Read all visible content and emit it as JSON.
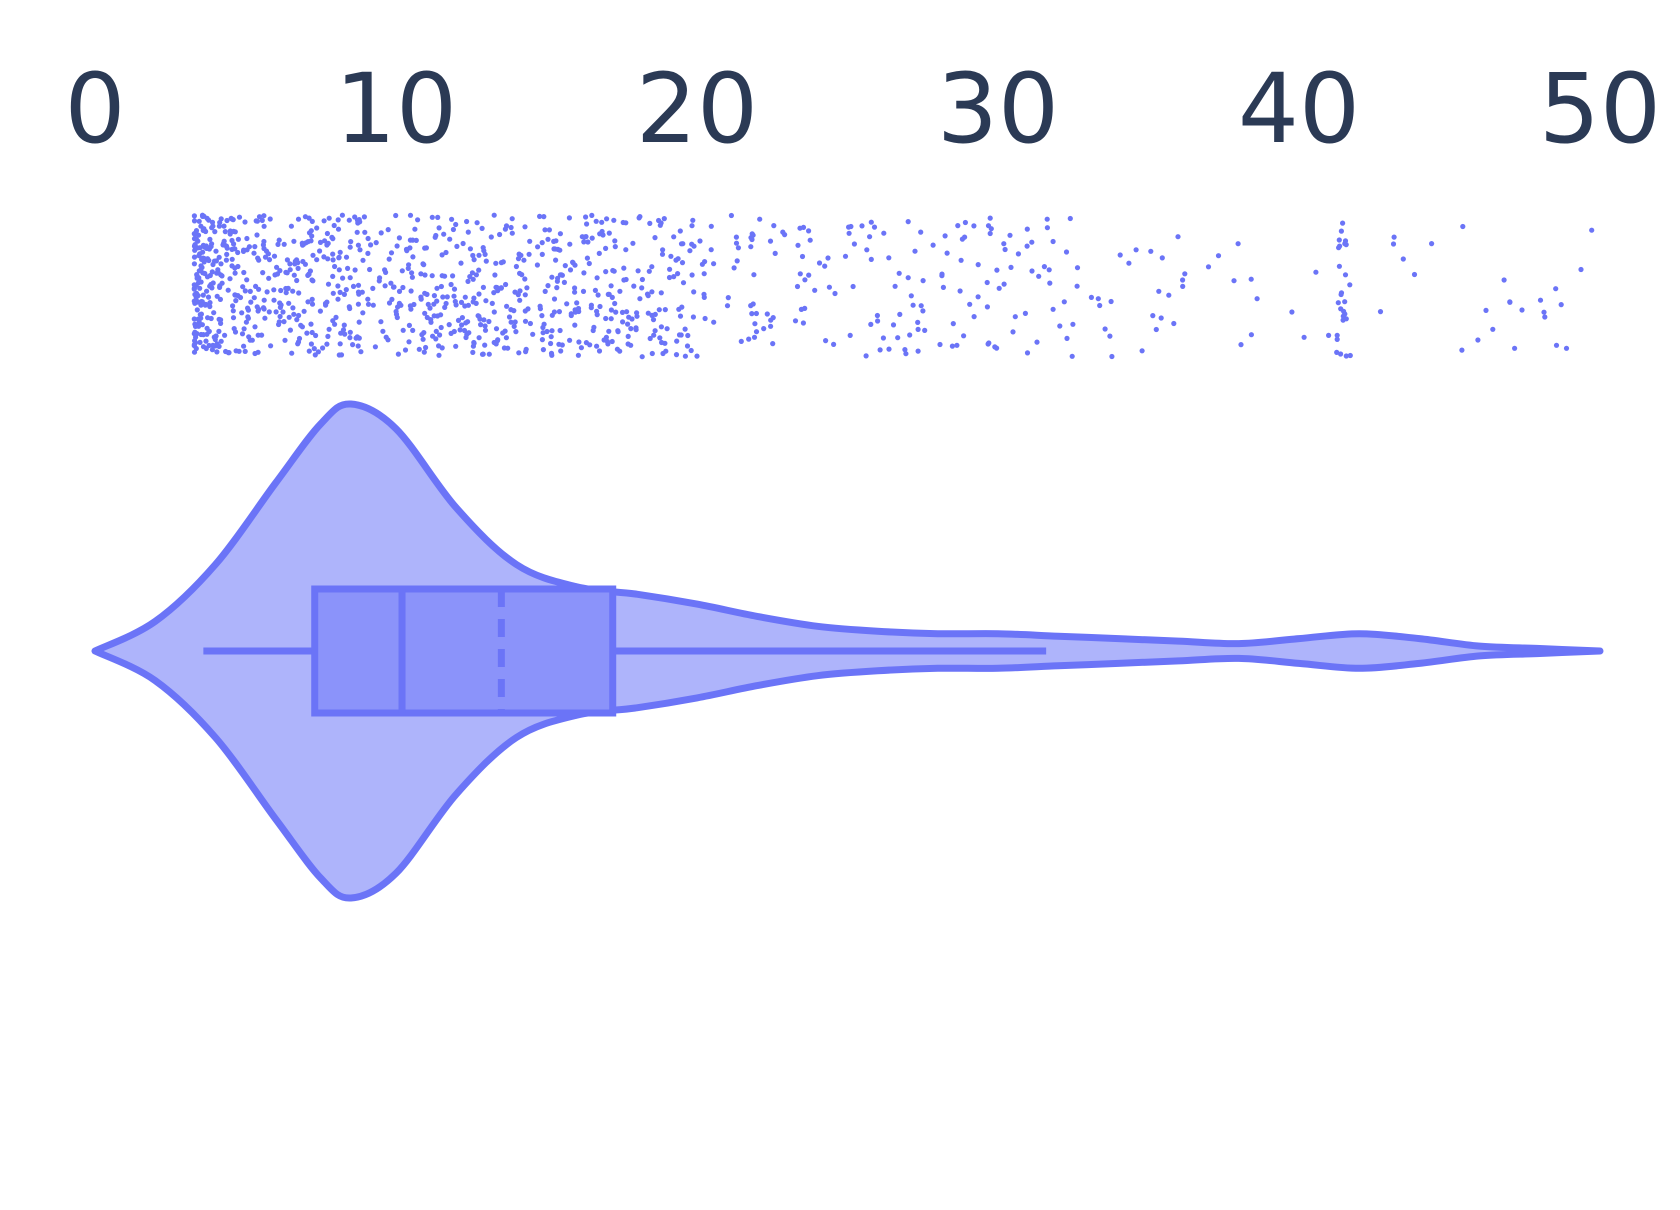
{
  "chart_data": {
    "type": "violin",
    "orientation": "horizontal",
    "xlim": [
      0,
      50
    ],
    "x_ticks": [
      {
        "value": 0,
        "label": "0"
      },
      {
        "value": 10,
        "label": "10"
      },
      {
        "value": 20,
        "label": "20"
      },
      {
        "value": 30,
        "label": "30"
      },
      {
        "value": 40,
        "label": "40"
      },
      {
        "value": 50,
        "label": "50"
      }
    ],
    "axis_position": "top",
    "grid": false,
    "legend": "none",
    "title": "",
    "xlabel": "",
    "ylabel": "",
    "box": {
      "whisker_low": 3.6,
      "q1": 7.3,
      "median": 10.2,
      "mean": 13.5,
      "q3": 17.2,
      "whisker_high": 31.6
    },
    "density": {
      "x": [
        0,
        2,
        4,
        6,
        7.5,
        8.5,
        10,
        12,
        14,
        16,
        18,
        20,
        22,
        24,
        26,
        28,
        30,
        32,
        34,
        36,
        38,
        40,
        42,
        44,
        46,
        48,
        50
      ],
      "height": [
        0.0,
        0.12,
        0.35,
        0.68,
        0.92,
        1.0,
        0.9,
        0.58,
        0.35,
        0.26,
        0.23,
        0.19,
        0.14,
        0.1,
        0.08,
        0.07,
        0.07,
        0.06,
        0.05,
        0.04,
        0.03,
        0.05,
        0.07,
        0.05,
        0.02,
        0.01,
        0.0
      ]
    },
    "points": {
      "range": [
        3.3,
        49.8
      ],
      "clusters": [
        {
          "from": 3.3,
          "to": 20,
          "weight": 0.78
        },
        {
          "from": 20,
          "to": 32,
          "weight": 0.14
        },
        {
          "from": 32,
          "to": 38,
          "weight": 0.03
        },
        {
          "from": 41.2,
          "to": 41.6,
          "weight": 0.02
        },
        {
          "from": 38,
          "to": 49.8,
          "weight": 0.03
        }
      ],
      "count": 1200
    },
    "colors": {
      "line": "#6b74f7",
      "violin_fill": "#aeb4fb",
      "box_fill": "#8b93fa",
      "points": "#6b74f7",
      "tick_text": "#2b3a55"
    }
  }
}
